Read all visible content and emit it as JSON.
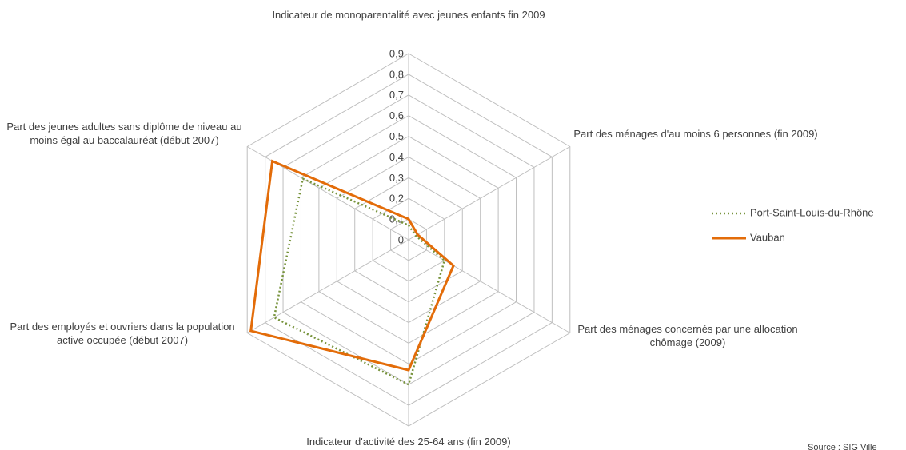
{
  "chart_data": {
    "type": "radar",
    "categories": [
      "Indicateur de monoparentalité avec jeunes enfants fin 2009",
      "Part des ménages d'au moins 6 personnes (fin 2009)",
      "Part des ménages concernés par une allocation chômage (2009)",
      "Indicateur d'activité des 25-64 ans (fin 2009)",
      "Part des employés et ouvriers dans la population active occupée (début 2007)",
      "Part des jeunes adultes sans diplôme de niveau au moins égal au baccalauréat (début 2007)"
    ],
    "series": [
      {
        "name": "Port-Saint-Louis-du-Rhône",
        "color": "#77933c",
        "values": [
          0.07,
          0.04,
          0.2,
          0.7,
          0.75,
          0.59
        ]
      },
      {
        "name": "Vauban",
        "color": "#e36c09",
        "values": [
          0.1,
          0.05,
          0.25,
          0.63,
          0.88,
          0.76
        ]
      }
    ],
    "ylim": [
      0,
      0.9
    ],
    "yticks": [
      0,
      {
        "value": 0.1,
        "label": "0,1"
      },
      {
        "value": 0.2,
        "label": "0,2"
      },
      {
        "value": 0.3,
        "label": "0,3"
      },
      {
        "value": 0.4,
        "label": "0,4"
      },
      {
        "value": 0.5,
        "label": "0,5"
      },
      {
        "value": 0.6,
        "label": "0,6"
      },
      {
        "value": 0.7,
        "label": "0,7"
      },
      {
        "value": 0.8,
        "label": "0,8"
      },
      {
        "value": 0.9,
        "label": "0,9"
      }
    ],
    "grid": true,
    "legend": "right",
    "source": "Source : SIG Ville"
  }
}
